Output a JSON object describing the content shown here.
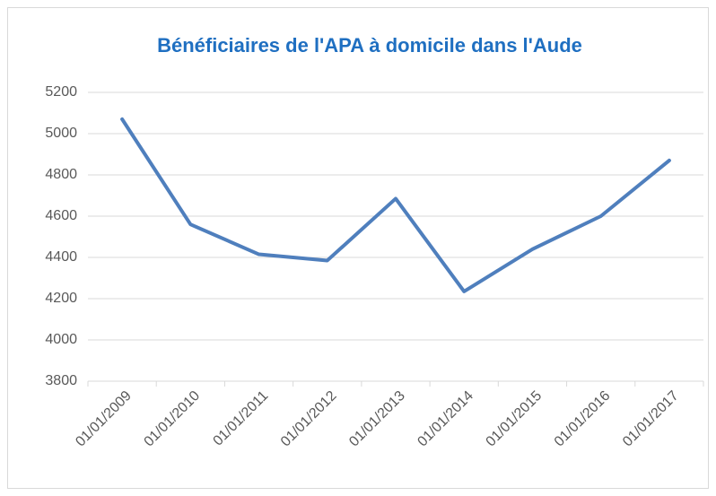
{
  "chart_data": {
    "type": "line",
    "title": "Bénéficiaires de l'APA à domicile dans l'Aude",
    "categories": [
      "01/01/2009",
      "01/01/2010",
      "01/01/2011",
      "01/01/2012",
      "01/01/2013",
      "01/01/2014",
      "01/01/2015",
      "01/01/2016",
      "01/01/2017"
    ],
    "values": [
      5070,
      4560,
      4415,
      4385,
      4685,
      4235,
      4440,
      4600,
      4870
    ],
    "color": "#4f7fbd",
    "ylim": [
      3800,
      5200
    ],
    "yticks": [
      3800,
      4000,
      4200,
      4400,
      4600,
      4800,
      5000,
      5200
    ],
    "grid": true
  }
}
